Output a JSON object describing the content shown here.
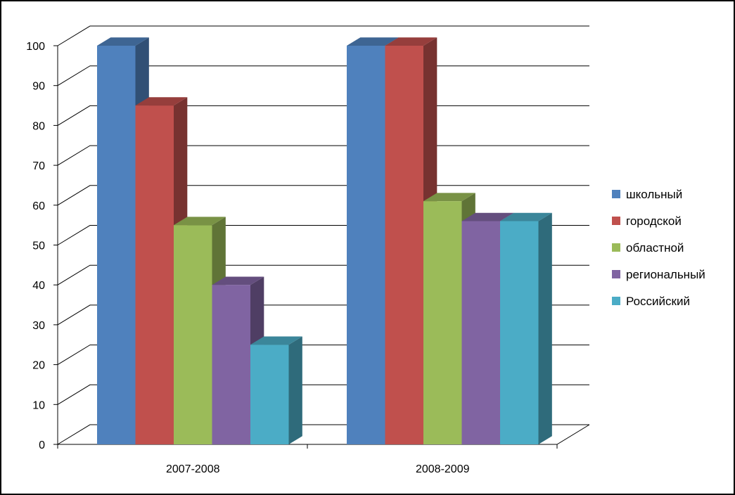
{
  "chart_data": {
    "type": "bar",
    "style": "3d-clustered-column",
    "categories": [
      "2007-2008",
      "2008-2009"
    ],
    "series": [
      {
        "name": "школьный",
        "values": [
          100,
          100
        ],
        "color": "#4F81BD"
      },
      {
        "name": "городской",
        "values": [
          85,
          100
        ],
        "color": "#C0504D"
      },
      {
        "name": "областной",
        "values": [
          55,
          61
        ],
        "color": "#9BBB59"
      },
      {
        "name": "региональный",
        "values": [
          40,
          56
        ],
        "color": "#8064A2"
      },
      {
        "name": "Российский",
        "values": [
          25,
          56
        ],
        "color": "#4BACC6"
      }
    ],
    "title": "",
    "xlabel": "",
    "ylabel": "",
    "ylim": [
      0,
      100
    ],
    "yticks": [
      0,
      10,
      20,
      30,
      40,
      50,
      60,
      70,
      80,
      90,
      100
    ],
    "grid": true,
    "legend_position": "right"
  }
}
